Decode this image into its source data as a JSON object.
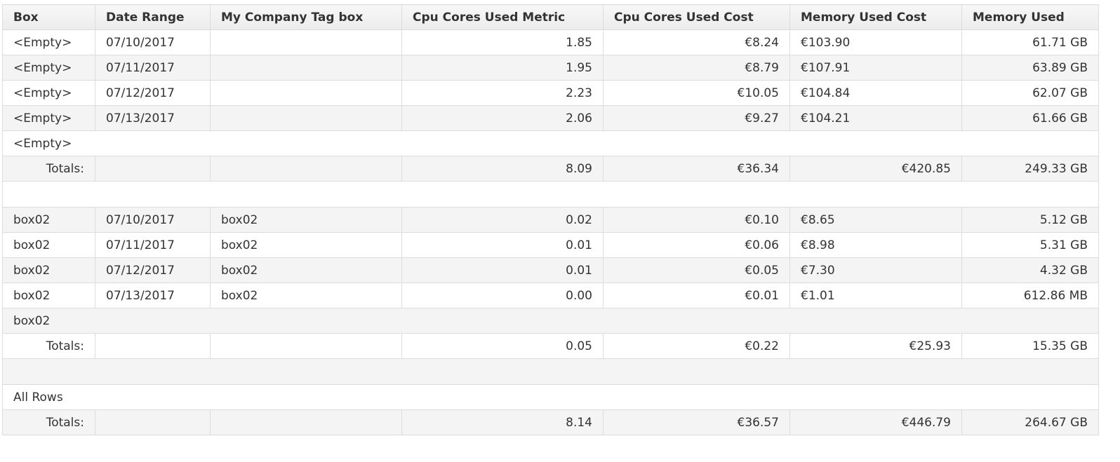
{
  "columns": [
    "Box",
    "Date Range",
    "My Company Tag box",
    "Cpu Cores Used Metric",
    "Cpu Cores Used Cost",
    "Memory Used Cost",
    "Memory Used"
  ],
  "groups": [
    {
      "rows": [
        [
          "<Empty>",
          "07/10/2017",
          "",
          "1.85",
          "€8.24",
          "€103.90",
          "61.71 GB"
        ],
        [
          "<Empty>",
          "07/11/2017",
          "",
          "1.95",
          "€8.79",
          "€107.91",
          "63.89 GB"
        ],
        [
          "<Empty>",
          "07/12/2017",
          "",
          "2.23",
          "€10.05",
          "€104.84",
          "62.07 GB"
        ],
        [
          "<Empty>",
          "07/13/2017",
          "",
          "2.06",
          "€9.27",
          "€104.21",
          "61.66 GB"
        ]
      ],
      "group_label": "<Empty>",
      "totals": [
        "Totals:",
        "",
        "",
        "8.09",
        "€36.34",
        "€420.85",
        "249.33 GB"
      ]
    },
    {
      "rows": [
        [
          "box02",
          "07/10/2017",
          "box02",
          "0.02",
          "€0.10",
          "€8.65",
          "5.12 GB"
        ],
        [
          "box02",
          "07/11/2017",
          "box02",
          "0.01",
          "€0.06",
          "€8.98",
          "5.31 GB"
        ],
        [
          "box02",
          "07/12/2017",
          "box02",
          "0.01",
          "€0.05",
          "€7.30",
          "4.32 GB"
        ],
        [
          "box02",
          "07/13/2017",
          "box02",
          "0.00",
          "€0.01",
          "€1.01",
          "612.86 MB"
        ]
      ],
      "group_label": "box02",
      "totals": [
        "Totals:",
        "",
        "",
        "0.05",
        "€0.22",
        "€25.93",
        "15.35 GB"
      ]
    }
  ],
  "all_rows": {
    "label": "All Rows",
    "totals": [
      "Totals:",
      "",
      "",
      "8.14",
      "€36.57",
      "€446.79",
      "264.67 GB"
    ]
  }
}
